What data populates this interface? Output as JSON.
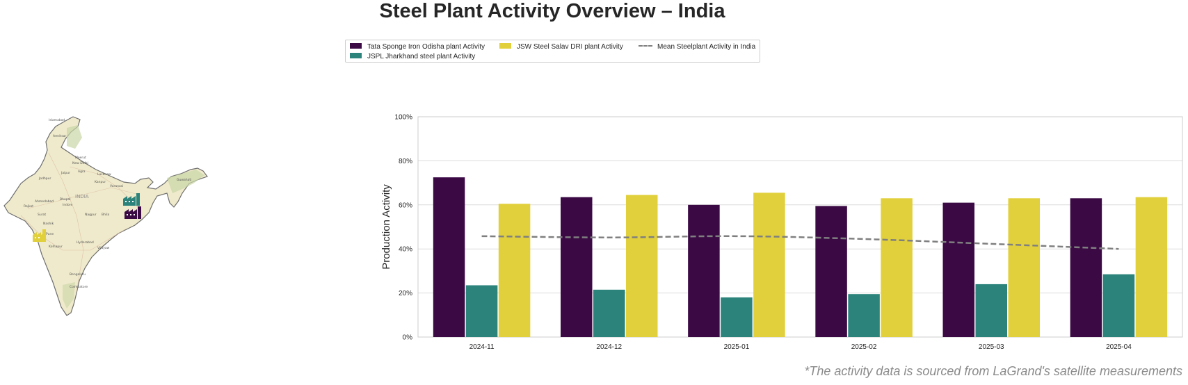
{
  "title": "Steel Plant Activity Overview – India",
  "note": "*The activity data is sourced from LaGrand's satellite measurements",
  "legend": {
    "items": [
      {
        "label": "Tata Sponge Iron Odisha plant Activity",
        "color": "#3b0a45"
      },
      {
        "label": "JSPL Jharkhand steel plant Activity",
        "color": "#2b837c"
      },
      {
        "label": "JSW Steel Salav DRI plant Activity",
        "color": "#e1d03c"
      },
      {
        "label": "Mean Steelplant Activity in India",
        "color": "#7f7f7f"
      }
    ]
  },
  "map": {
    "country_label": "INDIA",
    "cities": [
      "Islamabad",
      "Amritsar",
      "Meerut",
      "New Delhi",
      "Jaipur",
      "Agra",
      "Lucknow",
      "Jodhpur",
      "Kanpur",
      "Varanasi",
      "Guwahati",
      "Ahmedabad",
      "Bhopal",
      "Indore",
      "Rajkot",
      "Surat",
      "Nagpur",
      "Nashik",
      "Pune",
      "Kolhapur",
      "Hyderabad",
      "Vijayaw",
      "Bengaluru",
      "Coimbatore",
      "Bhila"
    ],
    "marker_colors": [
      "#2b837c",
      "#3b0a45",
      "#e1d03c"
    ]
  },
  "chart_data": {
    "type": "bar",
    "categories": [
      "2024-11",
      "2024-12",
      "2025-01",
      "2025-02",
      "2025-03",
      "2025-04"
    ],
    "series": [
      {
        "name": "Tata Sponge Iron Odisha plant Activity",
        "color": "#3b0a45",
        "values": [
          72.5,
          63.5,
          60,
          59.5,
          61,
          63
        ]
      },
      {
        "name": "JSPL Jharkhand steel plant Activity",
        "color": "#2b837c",
        "values": [
          23.5,
          21.5,
          18,
          19.5,
          24,
          28.5
        ]
      },
      {
        "name": "JSW Steel Salav DRI plant Activity",
        "color": "#e1d03c",
        "values": [
          60.5,
          64.5,
          65.5,
          63,
          63,
          63.5
        ]
      }
    ],
    "line": {
      "name": "Mean Steelplant Activity in India",
      "type": "line",
      "style": "dashed",
      "color": "#7f7f7f",
      "values": [
        45.8,
        45.2,
        45.8,
        44.5,
        42.3,
        40
      ]
    },
    "ylabel": "Production Activity",
    "xlabel": "",
    "ylim": [
      0,
      100
    ],
    "yticks": [
      "0%",
      "20%",
      "40%",
      "60%",
      "80%",
      "100%"
    ],
    "ytick_values": [
      0,
      20,
      40,
      60,
      80,
      100
    ],
    "grid": true,
    "legend_placement": "top-center"
  }
}
